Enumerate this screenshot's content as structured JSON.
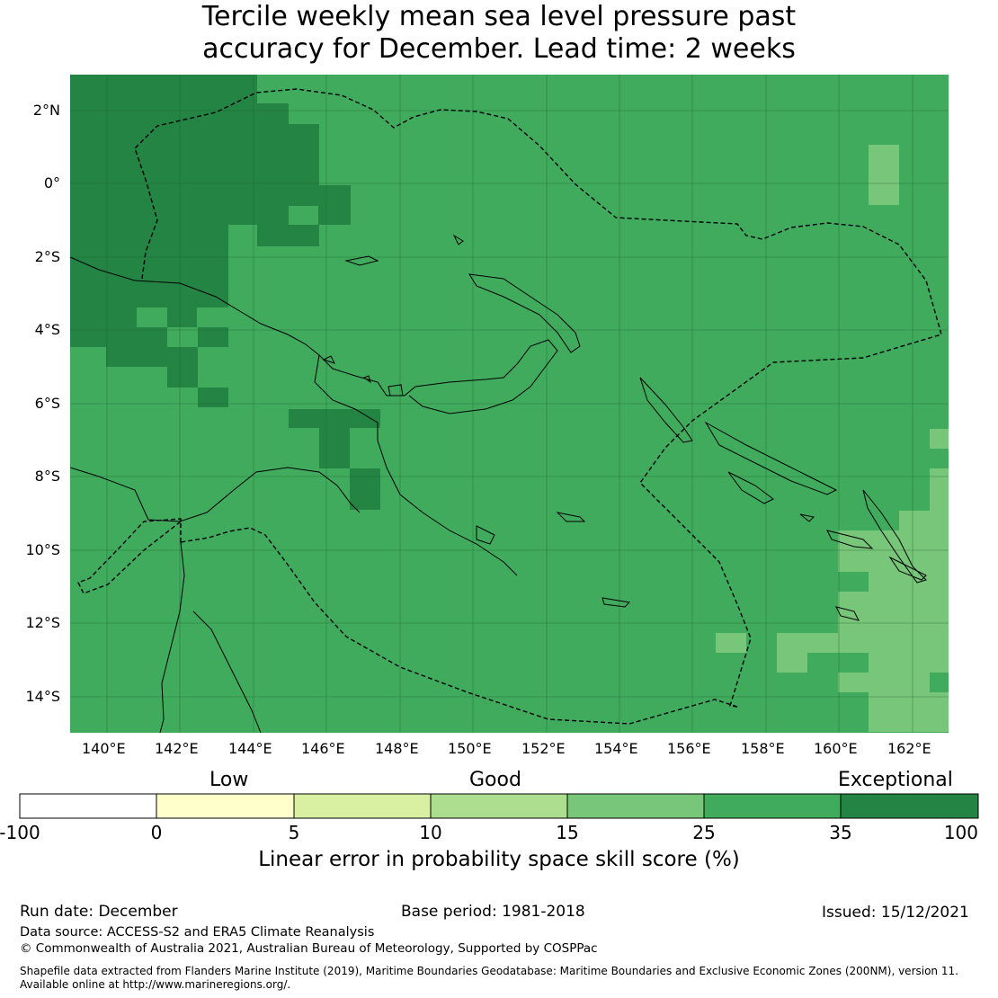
{
  "title": {
    "line1": "Tercile weekly mean sea level pressure past",
    "line2": "accuracy for December. Lead time: 2 weeks"
  },
  "axes": {
    "lon_ticks": [
      "140°E",
      "142°E",
      "144°E",
      "146°E",
      "148°E",
      "150°E",
      "152°E",
      "154°E",
      "156°E",
      "158°E",
      "160°E",
      "162°E"
    ],
    "lat_ticks": [
      "2°N",
      "0°",
      "2°S",
      "4°S",
      "6°S",
      "8°S",
      "10°S",
      "12°S",
      "14°S"
    ]
  },
  "colorbar": {
    "category_low": "Low",
    "category_good": "Good",
    "category_exceptional": "Exceptional",
    "boundaries": [
      "-100",
      "0",
      "5",
      "10",
      "15",
      "25",
      "35",
      "100"
    ],
    "colors": [
      "#ffffff",
      "#ffffcc",
      "#d9f0a3",
      "#addd8e",
      "#78c679",
      "#41ab5d",
      "#238443"
    ],
    "label": "Linear error in probability space skill score (%)"
  },
  "footer": {
    "run_date": "Run date: December",
    "base_period": "Base period: 1981-2018",
    "issued": "Issued: 15/12/2021",
    "data_source": "Data source: ACCESS-S2 and ERA5 Climate Reanalysis",
    "copyright": "© Commonwealth of Australia 2021, Australian Bureau of Meteorology, Supported by COSPPac",
    "shapefile_line1": "Shapefile data extracted from Flanders Marine Institute (2019), Maritime Boundaries Geodatabase: Maritime Boundaries and Exclusive Economic Zones (200NM), version 11.",
    "shapefile_line2": "Available online at http://www.marineregions.org/."
  },
  "colors": {
    "exceptional_green": "#238443",
    "high_green": "#41ab5d",
    "mid_green": "#78c679"
  }
}
